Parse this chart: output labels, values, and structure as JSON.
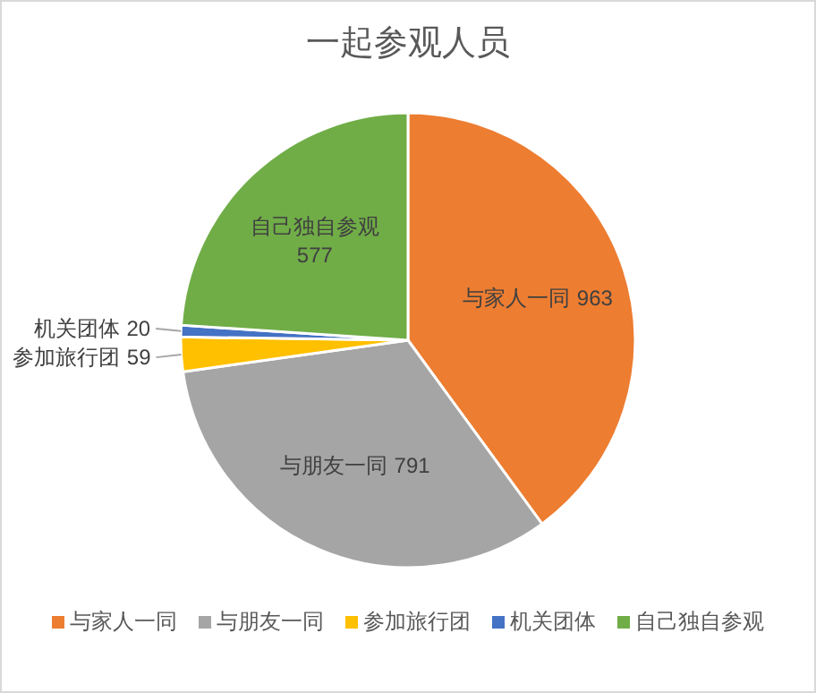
{
  "chart_data": {
    "type": "pie",
    "title": "一起参观人员",
    "categories": [
      "与家人一同",
      "与朋友一同",
      "参加旅行团",
      "机关团体",
      "自己独自参观"
    ],
    "values": [
      963,
      791,
      59,
      20,
      577
    ],
    "colors": [
      "#ed7d31",
      "#a5a5a5",
      "#ffc000",
      "#4472c4",
      "#70ad47"
    ],
    "data_labels": true,
    "legend": "bottom"
  }
}
